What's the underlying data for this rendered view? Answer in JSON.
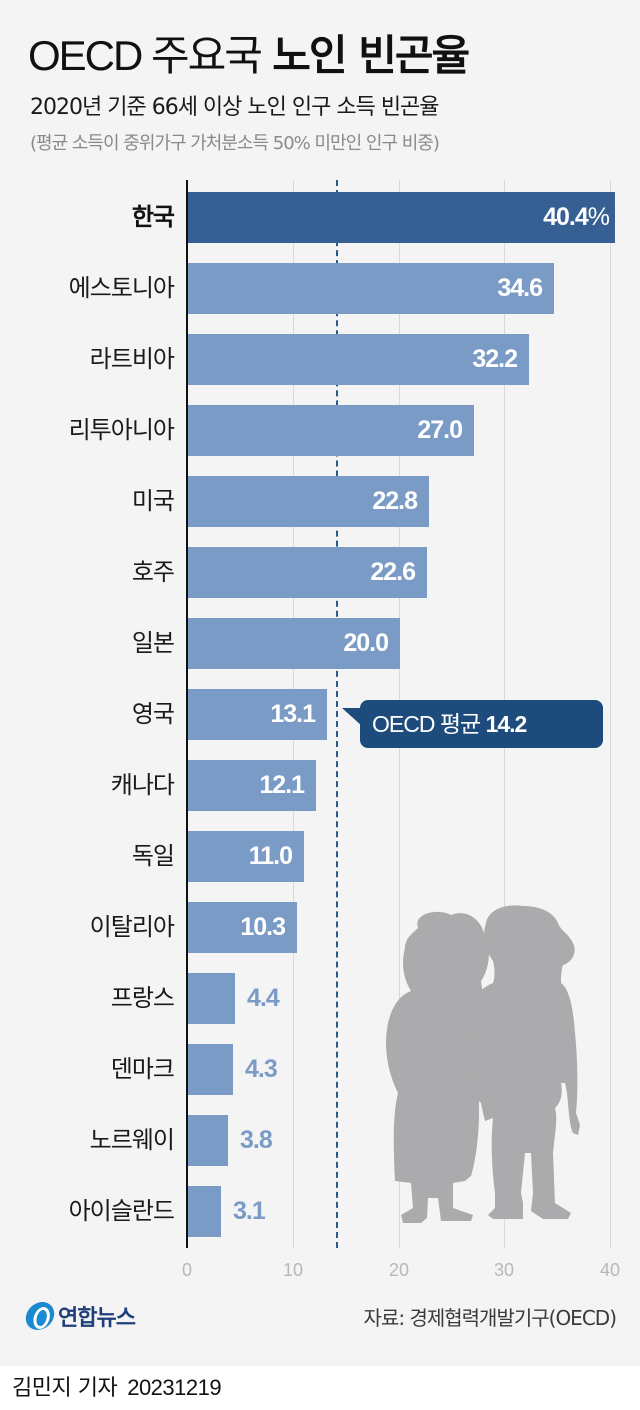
{
  "header": {
    "title_light": "OECD 주요국",
    "title_bold": "노인 빈곤율",
    "subtitle": "2020년 기준 66세 이상 노인 인구 소득 빈곤율",
    "note": "(평균 소득이 중위가구 가처분소득 50% 미만인 인구 비중)"
  },
  "chart_data": {
    "type": "bar",
    "orientation": "horizontal",
    "title": "OECD 주요국 노인 빈곤율",
    "subtitle": "2020년 기준 66세 이상 노인 인구 소득 빈곤율",
    "xlabel": "",
    "ylabel": "",
    "unit": "%",
    "xlim": [
      0,
      40
    ],
    "x_ticks": [
      "0",
      "10",
      "20",
      "30",
      "40"
    ],
    "grid": true,
    "categories": [
      "한국",
      "에스토니아",
      "라트비아",
      "리투아니아",
      "미국",
      "호주",
      "일본",
      "영국",
      "캐나다",
      "독일",
      "이탈리아",
      "프랑스",
      "덴마크",
      "노르웨이",
      "아이슬란드"
    ],
    "values": [
      40.4,
      34.6,
      32.2,
      27.0,
      22.8,
      22.6,
      20.0,
      13.1,
      12.1,
      11.0,
      10.3,
      4.4,
      4.3,
      3.8,
      3.1
    ],
    "value_labels": [
      "40.4",
      "34.6",
      "32.2",
      "27.0",
      "22.8",
      "22.6",
      "20.0",
      "13.1",
      "12.1",
      "11.0",
      "10.3",
      "4.4",
      "4.3",
      "3.8",
      "3.1"
    ],
    "highlight": "한국",
    "reference_line": {
      "label": "OECD 평균",
      "value": 14.2,
      "value_label": "14.2"
    },
    "colors": {
      "highlight": "#365f93",
      "default": "#7b9bc7",
      "reference": "#1d4c7c"
    }
  },
  "callout": {
    "label": "OECD 평균",
    "value": "14.2"
  },
  "pct_sign": "%",
  "source": "자료: 경제협력개발기구(OECD)",
  "logo": {
    "text": "연합뉴스"
  },
  "footer": {
    "reporter": "김민지 기자",
    "date": "20231219"
  }
}
